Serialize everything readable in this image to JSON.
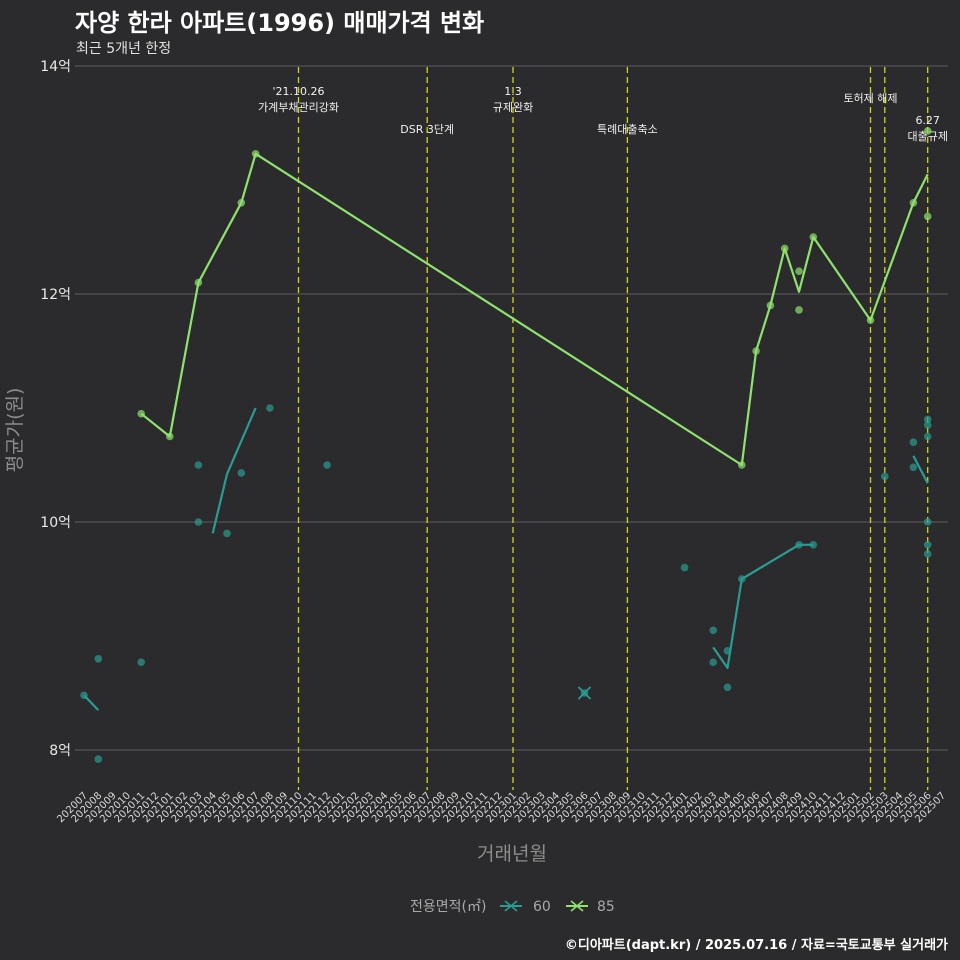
{
  "title": "자양 한라 아파트(1996) 매매가격 변화",
  "subtitle": "최근 5개년 한정",
  "caption": "©디아파트(dapt.kr) / 2025.07.16 / 자료=국토교통부 실거래가",
  "chart_data": {
    "type": "line",
    "xlabel": "거래년월",
    "ylabel": "평균가(원)",
    "ylim": [
      7.6,
      14.0
    ],
    "yticks": [
      {
        "v": 8,
        "label": "8억"
      },
      {
        "v": 10,
        "label": "10억"
      },
      {
        "v": 12,
        "label": "12억"
      },
      {
        "v": 14,
        "label": "14억"
      }
    ],
    "xticks": [
      "202007",
      "202008",
      "202009",
      "202010",
      "202011",
      "202012",
      "202101",
      "202102",
      "202103",
      "202104",
      "202105",
      "202106",
      "202107",
      "202108",
      "202109",
      "202110",
      "202111",
      "202112",
      "202201",
      "202202",
      "202203",
      "202204",
      "202205",
      "202206",
      "202207",
      "202208",
      "202209",
      "202210",
      "202211",
      "202212",
      "202301",
      "202302",
      "202303",
      "202304",
      "202305",
      "202306",
      "202307",
      "202308",
      "202309",
      "202310",
      "202311",
      "202312",
      "202401",
      "202402",
      "202403",
      "202404",
      "202405",
      "202406",
      "202407",
      "202408",
      "202409",
      "202410",
      "202411",
      "202412",
      "202501",
      "202502",
      "202503",
      "202504",
      "202505",
      "202506",
      "202507"
    ],
    "legend_title": "전용면적(㎡)",
    "series": [
      {
        "name": "60",
        "color": "#2a9c92",
        "line": [
          {
            "x": "202007",
            "y": 8.48
          },
          {
            "x": "202008",
            "y": 8.35
          },
          {
            "x": "202104",
            "y": 9.9
          },
          {
            "x": "202105",
            "y": 10.42
          },
          {
            "x": "202107",
            "y": 11.0
          },
          {
            "x": "202403",
            "y": 8.9
          },
          {
            "x": "202404",
            "y": 8.72
          },
          {
            "x": "202405",
            "y": 9.5
          },
          {
            "x": "202409",
            "y": 9.8
          },
          {
            "x": "202410",
            "y": 9.8
          },
          {
            "x": "202505",
            "y": 10.58
          },
          {
            "x": "202506",
            "y": 10.34
          }
        ],
        "segments": [
          [
            0,
            1
          ],
          [
            2,
            4
          ],
          [
            5,
            9
          ],
          [
            10,
            11
          ]
        ],
        "points": [
          {
            "x": "202007",
            "y": 8.48
          },
          {
            "x": "202008",
            "y": 8.8
          },
          {
            "x": "202008",
            "y": 7.92
          },
          {
            "x": "202011",
            "y": 8.77
          },
          {
            "x": "202103",
            "y": 10.5
          },
          {
            "x": "202103",
            "y": 10.0
          },
          {
            "x": "202105",
            "y": 9.9
          },
          {
            "x": "202106",
            "y": 10.43
          },
          {
            "x": "202108",
            "y": 11.0
          },
          {
            "x": "202112",
            "y": 10.5
          },
          {
            "x": "202306",
            "y": 8.5
          },
          {
            "x": "202401",
            "y": 9.6
          },
          {
            "x": "202403",
            "y": 9.05
          },
          {
            "x": "202403",
            "y": 8.77
          },
          {
            "x": "202404",
            "y": 8.87
          },
          {
            "x": "202404",
            "y": 8.55
          },
          {
            "x": "202405",
            "y": 9.5
          },
          {
            "x": "202409",
            "y": 9.8
          },
          {
            "x": "202410",
            "y": 9.8
          },
          {
            "x": "202503",
            "y": 10.4
          },
          {
            "x": "202505",
            "y": 10.7
          },
          {
            "x": "202505",
            "y": 10.48
          },
          {
            "x": "202506",
            "y": 10.9
          },
          {
            "x": "202506",
            "y": 10.85
          },
          {
            "x": "202506",
            "y": 10.75
          },
          {
            "x": "202506",
            "y": 10.0
          },
          {
            "x": "202506",
            "y": 9.8
          },
          {
            "x": "202506",
            "y": 9.72
          }
        ],
        "cross": {
          "x": "202306",
          "y": 8.5
        }
      },
      {
        "name": "85",
        "color": "#8fe26e",
        "line": [
          {
            "x": "202011",
            "y": 10.95
          },
          {
            "x": "202101",
            "y": 10.75
          },
          {
            "x": "202103",
            "y": 12.1
          },
          {
            "x": "202106",
            "y": 12.8
          },
          {
            "x": "202107",
            "y": 13.23
          },
          {
            "x": "202405",
            "y": 10.5
          },
          {
            "x": "202406",
            "y": 11.5
          },
          {
            "x": "202407",
            "y": 11.9
          },
          {
            "x": "202408",
            "y": 12.4
          },
          {
            "x": "202409",
            "y": 12.02
          },
          {
            "x": "202410",
            "y": 12.5
          },
          {
            "x": "202502",
            "y": 11.77
          },
          {
            "x": "202505",
            "y": 12.8
          },
          {
            "x": "202506",
            "y": 13.05
          }
        ],
        "segments": [
          [
            0,
            13
          ]
        ],
        "points": [
          {
            "x": "202011",
            "y": 10.95
          },
          {
            "x": "202101",
            "y": 10.75
          },
          {
            "x": "202103",
            "y": 12.1
          },
          {
            "x": "202106",
            "y": 12.8
          },
          {
            "x": "202107",
            "y": 13.23
          },
          {
            "x": "202405",
            "y": 10.5
          },
          {
            "x": "202406",
            "y": 11.5
          },
          {
            "x": "202407",
            "y": 11.9
          },
          {
            "x": "202408",
            "y": 12.4
          },
          {
            "x": "202409",
            "y": 12.2
          },
          {
            "x": "202409",
            "y": 11.86
          },
          {
            "x": "202410",
            "y": 12.5
          },
          {
            "x": "202502",
            "y": 11.77
          },
          {
            "x": "202505",
            "y": 12.8
          },
          {
            "x": "202506",
            "y": 13.43
          },
          {
            "x": "202506",
            "y": 12.68
          }
        ]
      }
    ],
    "events": [
      {
        "x": "202110",
        "label1": "'21.10.26",
        "label2": "가계부채관리강화",
        "row": 0
      },
      {
        "x": "202207",
        "label1": "DSR 3단계",
        "label2": "",
        "row": 2
      },
      {
        "x": "202301",
        "label1": "1.3",
        "label2": "규제완화",
        "row": 0
      },
      {
        "x": "202309",
        "label1": "특례대출축소",
        "label2": "",
        "row": 2
      },
      {
        "x": "202502",
        "label1": "토허제 해제",
        "label2": "",
        "row": 1
      },
      {
        "x": "202503",
        "label1": "",
        "label2": "",
        "row": 1
      },
      {
        "x": "202506",
        "label1": "6.27",
        "label2": "대출규제",
        "row": 3
      }
    ]
  }
}
